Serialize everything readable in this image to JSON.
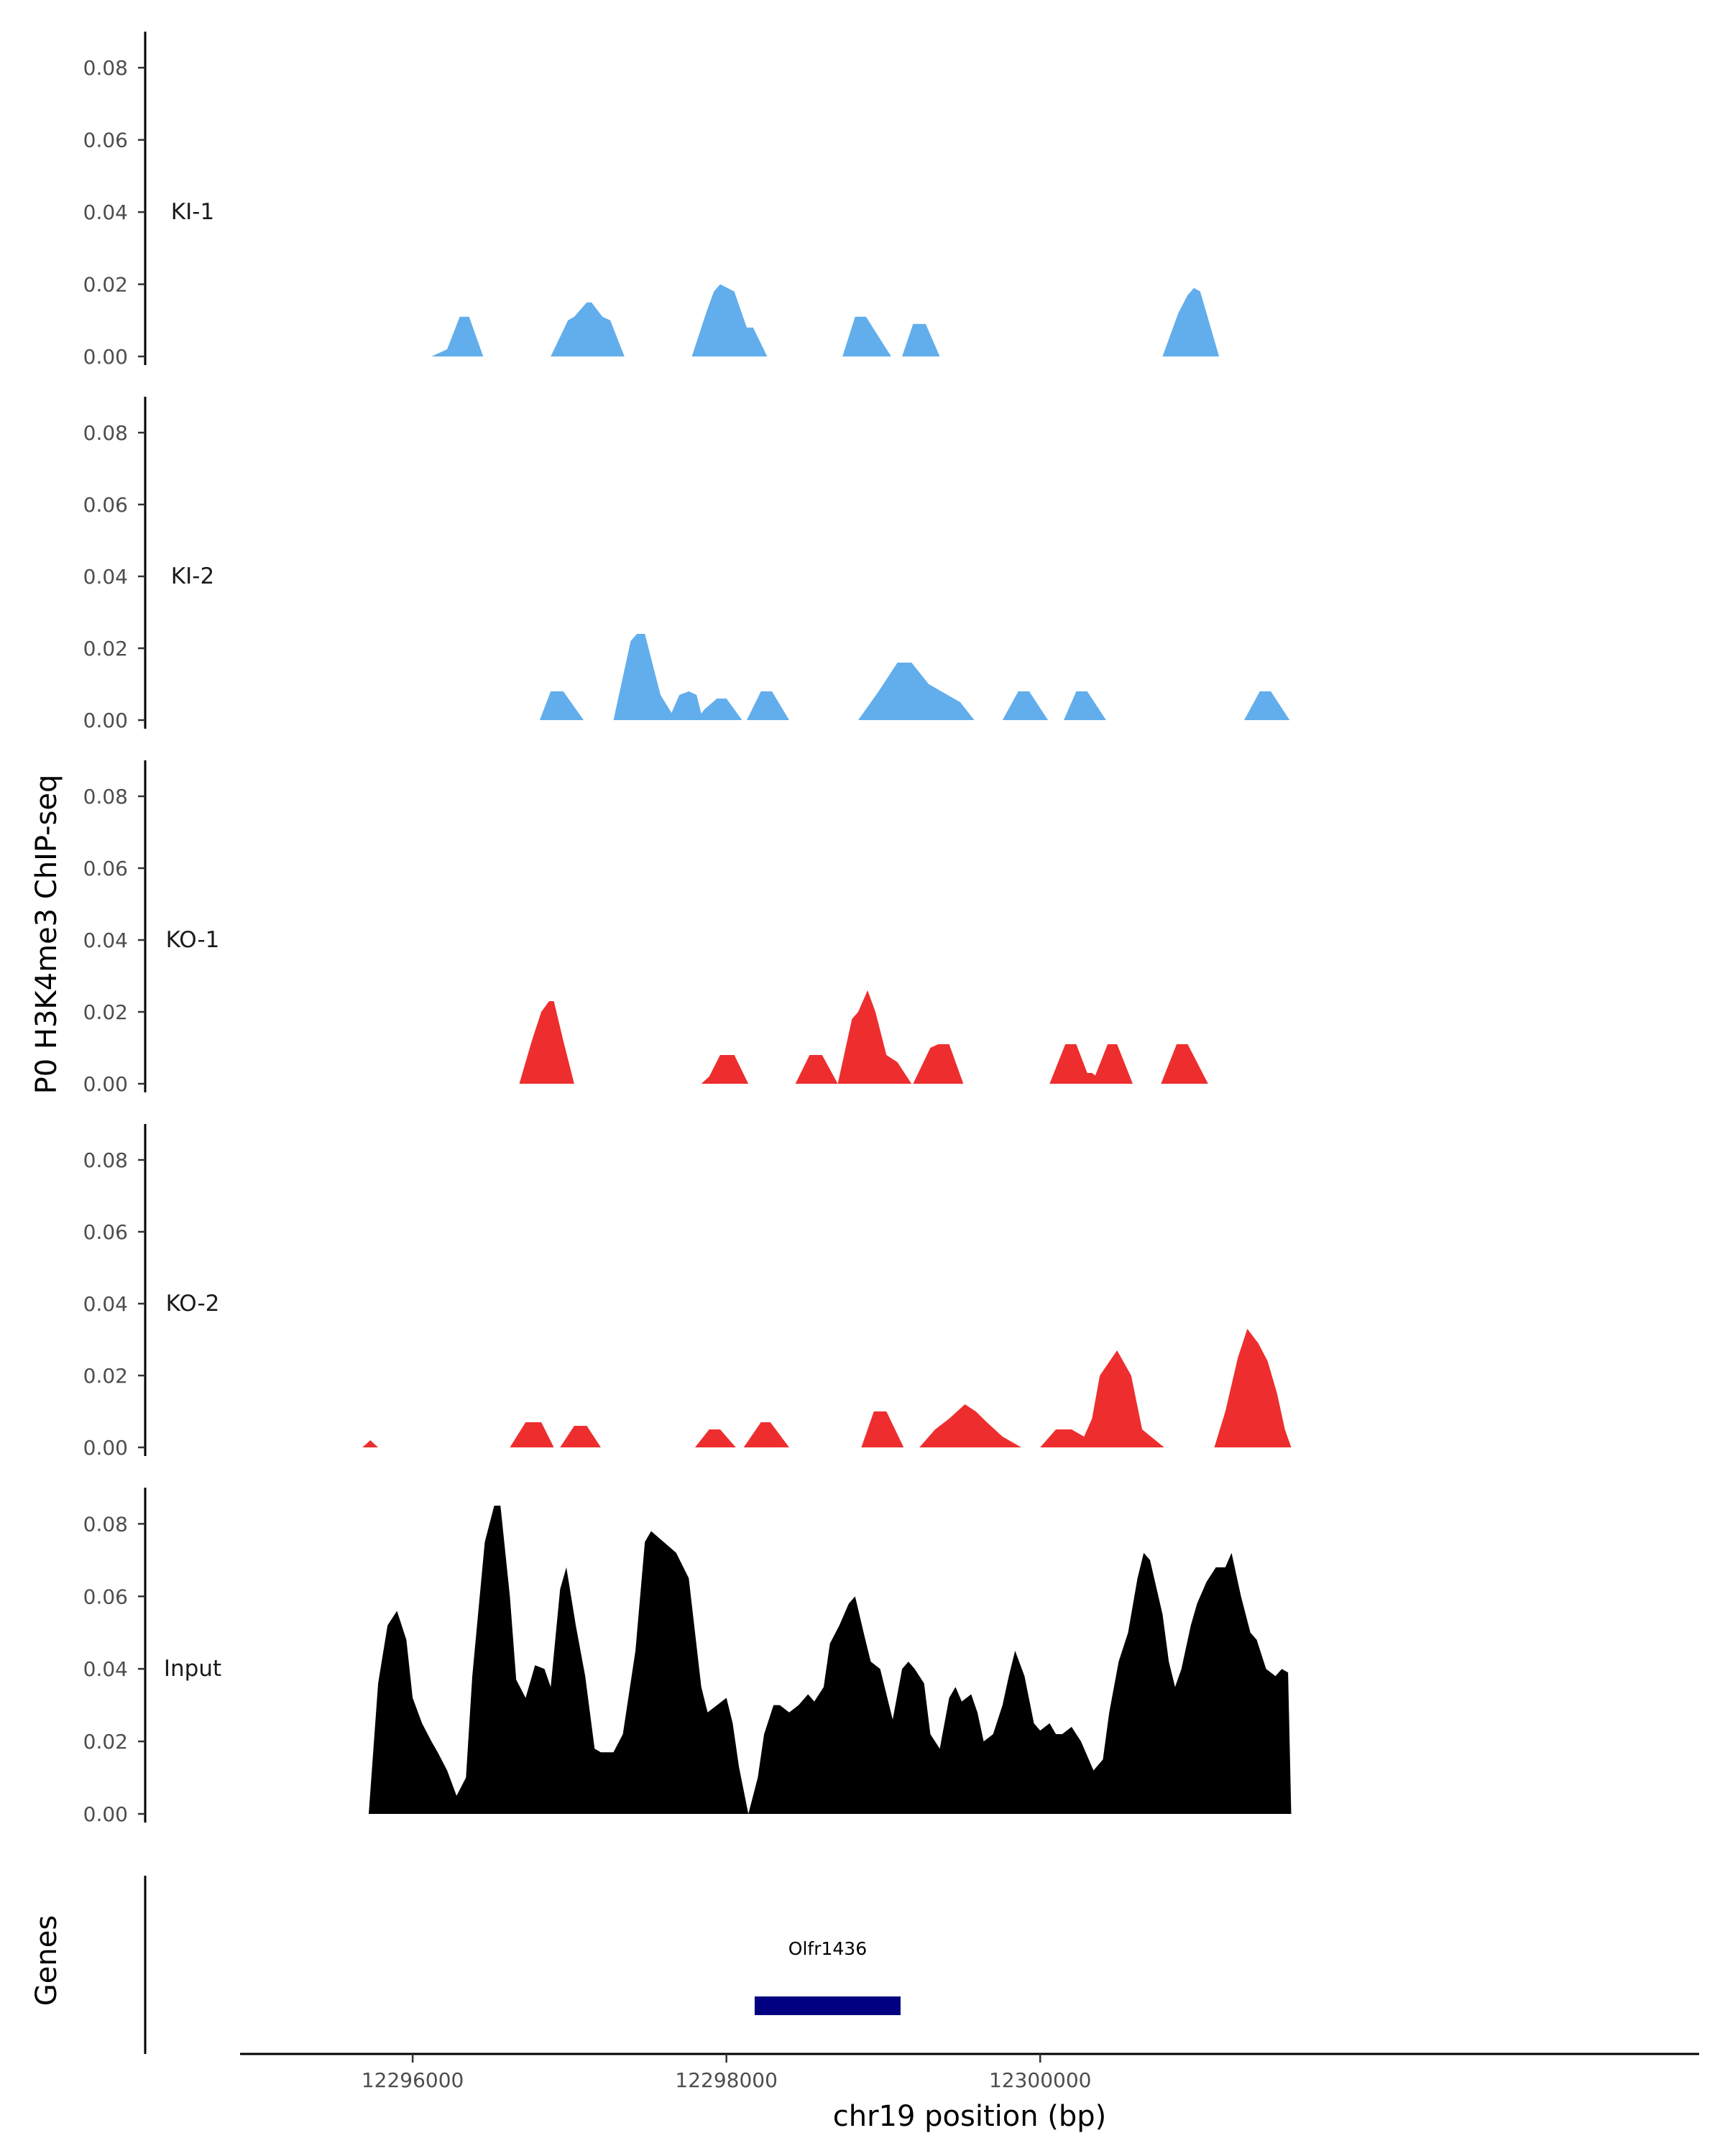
{
  "chart_data": {
    "type": "area",
    "ylabel": "P0 H3K4me3 ChIP-seq",
    "xlabel": "chr19 position (bp)",
    "genes_label": "Genes",
    "xlim": [
      12294900,
      12304200
    ],
    "ylim": [
      0,
      0.088
    ],
    "x_ticks": [
      12296000,
      12298000,
      12300000
    ],
    "x_tick_labels": [
      "12296000",
      "12298000",
      "12300000"
    ],
    "y_ticks": [
      0,
      0.02,
      0.04,
      0.06,
      0.08
    ],
    "y_tick_labels": [
      "0.00",
      "0.02",
      "0.04",
      "0.06",
      "0.08"
    ],
    "colors": {
      "KI": "#62aeec",
      "KO": "#ee2e2e",
      "Input": "#000000",
      "gene": "#000080"
    },
    "tracks": [
      {
        "name": "KI-1",
        "color": "#62aeec",
        "peaks": [
          {
            "x": [
              12296120,
              12296220,
              12296300,
              12296360,
              12296450
            ],
            "y": [
              0,
              0.002,
              0.011,
              0.011,
              0
            ]
          },
          {
            "x": [
              12296880,
              12296990,
              12297030,
              12297110,
              12297140,
              12297210,
              12297260,
              12297350
            ],
            "y": [
              0,
              0.01,
              0.011,
              0.015,
              0.015,
              0.011,
              0.01,
              0
            ]
          },
          {
            "x": [
              12297780,
              12297870,
              12297920,
              12297960,
              12298050,
              12298130,
              12298170,
              12298260
            ],
            "y": [
              0,
              0.012,
              0.018,
              0.02,
              0.018,
              0.008,
              0.008,
              0
            ]
          },
          {
            "x": [
              12298740,
              12298820,
              12298890,
              12299050
            ],
            "y": [
              0,
              0.011,
              0.011,
              0
            ]
          },
          {
            "x": [
              12299120,
              12299190,
              12299270,
              12299360
            ],
            "y": [
              0,
              0.009,
              0.009,
              0
            ]
          },
          {
            "x": [
              12300780,
              12300880,
              12300940,
              12300980,
              12301020,
              12301140
            ],
            "y": [
              0,
              0.012,
              0.017,
              0.019,
              0.018,
              0
            ]
          }
        ]
      },
      {
        "name": "KI-2",
        "color": "#62aeec",
        "peaks": [
          {
            "x": [
              12296810,
              12296880,
              12296960,
              12297090
            ],
            "y": [
              0,
              0.008,
              0.008,
              0
            ]
          },
          {
            "x": [
              12297280,
              12297390,
              12297430,
              12297480,
              12297580,
              12297650,
              12297700,
              12297760,
              12297810,
              12297850
            ],
            "y": [
              0,
              0.022,
              0.024,
              0.024,
              0.007,
              0.002,
              0.007,
              0.008,
              0.007,
              0
            ]
          },
          {
            "x": [
              12297810,
              12297860,
              12297940,
              12298000,
              12298100
            ],
            "y": [
              0,
              0.003,
              0.006,
              0.006,
              0
            ]
          },
          {
            "x": [
              12298130,
              12298220,
              12298290,
              12298400
            ],
            "y": [
              0,
              0.008,
              0.008,
              0
            ]
          },
          {
            "x": [
              12298840,
              12298970,
              12299090,
              12299180,
              12299290,
              12299370,
              12299490,
              12299580
            ],
            "y": [
              0,
              0.008,
              0.016,
              0.016,
              0.01,
              0.008,
              0.005,
              0
            ]
          },
          {
            "x": [
              12299760,
              12299860,
              12299930,
              12300050
            ],
            "y": [
              0,
              0.008,
              0.008,
              0
            ]
          },
          {
            "x": [
              12300150,
              12300230,
              12300300,
              12300420
            ],
            "y": [
              0,
              0.008,
              0.008,
              0
            ]
          },
          {
            "x": [
              12301300,
              12301400,
              12301470,
              12301590
            ],
            "y": [
              0,
              0.008,
              0.008,
              0
            ]
          }
        ]
      },
      {
        "name": "KO-1",
        "color": "#ee2e2e",
        "peaks": [
          {
            "x": [
              12296680,
              12296760,
              12296820,
              12296870,
              12296900,
              12296960,
              12297030
            ],
            "y": [
              0,
              0.012,
              0.02,
              0.023,
              0.023,
              0.012,
              0
            ]
          },
          {
            "x": [
              12297840,
              12297890,
              12297960,
              12298050,
              12298140
            ],
            "y": [
              0,
              0.002,
              0.008,
              0.008,
              0
            ]
          },
          {
            "x": [
              12298440,
              12298530,
              12298610,
              12298710
            ],
            "y": [
              0,
              0.008,
              0.008,
              0
            ]
          },
          {
            "x": [
              12298710,
              12298800,
              12298840,
              12298900,
              12298950,
              12299020,
              12299090,
              12299180
            ],
            "y": [
              0,
              0.018,
              0.02,
              0.026,
              0.02,
              0.008,
              0.006,
              0
            ]
          },
          {
            "x": [
              12299190,
              12299300,
              12299350,
              12299420,
              12299510
            ],
            "y": [
              0,
              0.01,
              0.011,
              0.011,
              0
            ]
          },
          {
            "x": [
              12300060,
              12300160,
              12300230,
              12300300,
              12300330,
              12300420
            ],
            "y": [
              0,
              0.011,
              0.011,
              0.003,
              0.003,
              0
            ]
          },
          {
            "x": [
              12300330,
              12300430,
              12300490,
              12300590
            ],
            "y": [
              0,
              0.011,
              0.011,
              0
            ]
          },
          {
            "x": [
              12300770,
              12300870,
              12300940,
              12301070
            ],
            "y": [
              0,
              0.011,
              0.011,
              0
            ]
          }
        ]
      },
      {
        "name": "KO-2",
        "color": "#ee2e2e",
        "peaks": [
          {
            "x": [
              12295680,
              12295730,
              12295780
            ],
            "y": [
              0,
              0.002,
              0
            ]
          },
          {
            "x": [
              12296620,
              12296720,
              12296820,
              12296900
            ],
            "y": [
              0,
              0.007,
              0.007,
              0
            ]
          },
          {
            "x": [
              12296940,
              12297030,
              12297110,
              12297200
            ],
            "y": [
              0,
              0.006,
              0.006,
              0
            ]
          },
          {
            "x": [
              12297800,
              12297890,
              12297960,
              12298060
            ],
            "y": [
              0,
              0.005,
              0.005,
              0
            ]
          },
          {
            "x": [
              12298110,
              12298220,
              12298280,
              12298400
            ],
            "y": [
              0,
              0.007,
              0.007,
              0
            ]
          },
          {
            "x": [
              12298860,
              12298940,
              12299020,
              12299130
            ],
            "y": [
              0,
              0.01,
              0.01,
              0
            ]
          },
          {
            "x": [
              12299230,
              12299330,
              12299420,
              12299520,
              12299590,
              12299660,
              12299760,
              12299880
            ],
            "y": [
              0,
              0.005,
              0.008,
              0.012,
              0.01,
              0.007,
              0.003,
              0
            ]
          },
          {
            "x": [
              12300000,
              12300100,
              12300200,
              12300280,
              12300330,
              12300380,
              12300490,
              12300580,
              12300650,
              12300790
            ],
            "y": [
              0,
              0.005,
              0.005,
              0.003,
              0.008,
              0.02,
              0.027,
              0.02,
              0.005,
              0
            ]
          },
          {
            "x": [
              12301110,
              12301180,
              12301260,
              12301320,
              12301390,
              12301450,
              12301510,
              12301560,
              12301600
            ],
            "y": [
              0,
              0.01,
              0.025,
              0.033,
              0.029,
              0.024,
              0.015,
              0.005,
              0
            ]
          }
        ]
      },
      {
        "name": "Input",
        "color": "#000000",
        "peaks": [
          {
            "x": [
              12295720,
              12295780,
              12295840,
              12295900,
              12295960,
              12296000,
              12296060,
              12296120,
              12296160,
              12296220,
              12296280,
              12296340,
              12296380,
              12296460,
              12296520,
              12296560,
              12296620,
              12296660,
              12296720,
              12296780,
              12296840,
              12296880,
              12296940,
              12296980,
              12297040,
              12297100,
              12297160,
              12297200,
              12297280,
              12297340,
              12297420,
              12297480,
              12297520,
              12297600,
              12297680,
              12297760,
              12297800,
              12297840,
              12297880,
              12297940,
              12298000,
              12298040,
              12298080,
              12298140,
              12298200,
              12298240,
              12298300,
              12298340,
              12298400,
              12298460,
              12298520,
              12298560,
              12298620,
              12298660,
              12298720,
              12298780,
              12298820,
              12298880,
              12298920,
              12298980,
              12299020,
              12299060,
              12299120,
              12299160,
              12299200,
              12299260,
              12299300,
              12299360,
              12299420,
              12299460,
              12299500,
              12299560,
              12299600,
              12299640,
              12299700,
              12299760,
              12299800,
              12299840,
              12299900,
              12299960,
              12300000,
              12300060,
              12300100,
              12300140,
              12300200,
              12300260,
              12300300,
              12300340,
              12300400,
              12300440,
              12300500,
              12300560,
              12300620,
              12300660,
              12300700,
              12300780,
              12300820,
              12300860,
              12300900,
              12300960,
              12301000,
              12301060,
              12301120,
              12301180,
              12301220,
              12301280,
              12301340,
              12301380,
              12301440,
              12301500,
              12301540,
              12301580,
              12301600
            ],
            "y": [
              0,
              0.036,
              0.052,
              0.056,
              0.048,
              0.032,
              0.025,
              0.02,
              0.017,
              0.012,
              0.005,
              0.01,
              0.038,
              0.075,
              0.085,
              0.085,
              0.06,
              0.037,
              0.032,
              0.041,
              0.04,
              0.035,
              0.062,
              0.068,
              0.052,
              0.038,
              0.018,
              0.017,
              0.017,
              0.022,
              0.045,
              0.075,
              0.078,
              0.075,
              0.072,
              0.065,
              0.05,
              0.035,
              0.028,
              0.03,
              0.032,
              0.025,
              0.013,
              0.0,
              0.01,
              0.022,
              0.03,
              0.03,
              0.028,
              0.03,
              0.033,
              0.031,
              0.035,
              0.047,
              0.052,
              0.058,
              0.06,
              0.049,
              0.042,
              0.04,
              0.033,
              0.026,
              0.04,
              0.042,
              0.04,
              0.036,
              0.022,
              0.018,
              0.032,
              0.035,
              0.031,
              0.033,
              0.028,
              0.02,
              0.022,
              0.03,
              0.038,
              0.045,
              0.038,
              0.025,
              0.023,
              0.025,
              0.022,
              0.022,
              0.024,
              0.02,
              0.016,
              0.012,
              0.015,
              0.028,
              0.042,
              0.05,
              0.065,
              0.072,
              0.07,
              0.055,
              0.042,
              0.035,
              0.04,
              0.052,
              0.058,
              0.064,
              0.068,
              0.068,
              0.072,
              0.06,
              0.05,
              0.048,
              0.04,
              0.038,
              0.04,
              0.039,
              0
            ]
          }
        ]
      }
    ],
    "genes": [
      {
        "name": "Olfr1436",
        "start": 12298180,
        "end": 12299110
      }
    ]
  }
}
